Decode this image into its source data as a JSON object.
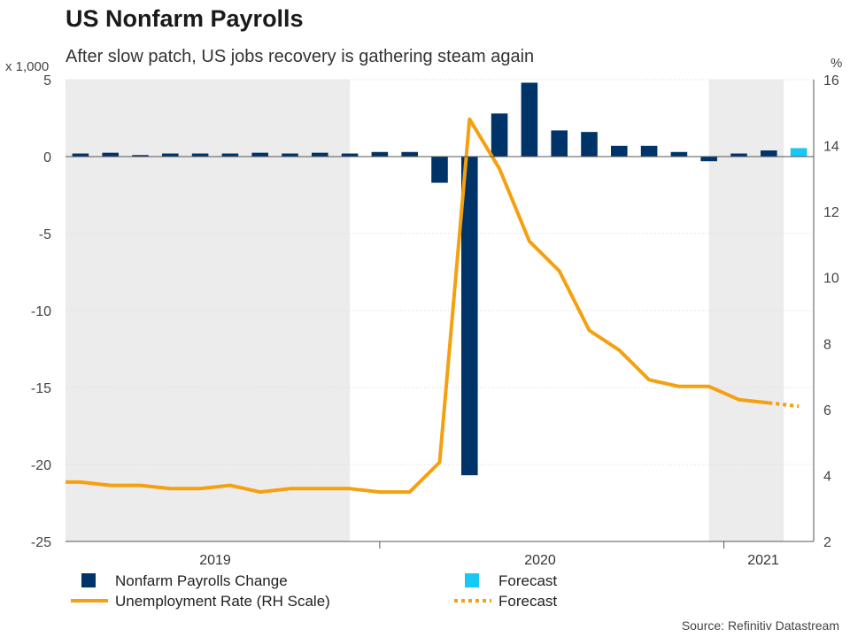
{
  "title": "US Nonfarm Payrolls",
  "subtitle": "After slow patch, US jobs recovery is gathering steam again",
  "source": "Source: Refinitiv Datastream",
  "colors": {
    "payrolls": "#003468",
    "forecast_bar": "#17c7f5",
    "unemployment": "#f5a00f",
    "shade": "#ececec"
  },
  "chart_data": {
    "type": "bar",
    "left_axis": {
      "label": "x 1,000",
      "ylim": [
        -25,
        5
      ],
      "ticks": [
        "5",
        "0",
        "-5",
        "-10",
        "-15",
        "-20",
        "-25"
      ]
    },
    "right_axis": {
      "label": "%",
      "ylim": [
        2,
        16
      ],
      "ticks": [
        "16",
        "14",
        "12",
        "10",
        "8",
        "6",
        "4",
        "2"
      ]
    },
    "year_labels": [
      "2019",
      "2020",
      "2021"
    ],
    "periods": 25,
    "shaded_ranges": [
      [
        0,
        9.5
      ],
      [
        21.5,
        24
      ]
    ],
    "series": [
      {
        "name": "Nonfarm Payrolls Change",
        "type": "bar",
        "values": [
          0.2,
          0.25,
          0.1,
          0.2,
          0.2,
          0.2,
          0.25,
          0.2,
          0.25,
          0.2,
          0.3,
          0.3,
          -1.7,
          -20.7,
          2.8,
          4.8,
          1.7,
          1.6,
          0.7,
          0.7,
          0.3,
          -0.3,
          0.2,
          0.4,
          null
        ]
      },
      {
        "name": "Forecast",
        "type": "bar",
        "index": 24,
        "value": 0.55
      },
      {
        "name": "Unemployment Rate (RH Scale)",
        "type": "line",
        "axis": "right",
        "values": [
          3.8,
          3.7,
          3.7,
          3.6,
          3.6,
          3.7,
          3.5,
          3.6,
          3.6,
          3.6,
          3.5,
          3.5,
          4.4,
          14.8,
          13.3,
          11.1,
          10.2,
          8.4,
          7.8,
          6.9,
          6.7,
          6.7,
          6.3,
          6.2,
          null
        ]
      },
      {
        "name": "Forecast",
        "type": "line-dotted",
        "axis": "right",
        "from": [
          23,
          6.2
        ],
        "to": [
          24,
          6.1
        ]
      }
    ],
    "legend": [
      {
        "label": "Nonfarm Payrolls Change",
        "kind": "box",
        "color": "#003468"
      },
      {
        "label": "Forecast",
        "kind": "box",
        "color": "#17c7f5"
      },
      {
        "label": "Unemployment Rate (RH Scale)",
        "kind": "line",
        "color": "#f5a00f"
      },
      {
        "label": "Forecast",
        "kind": "dotted",
        "color": "#f5a00f"
      }
    ]
  }
}
